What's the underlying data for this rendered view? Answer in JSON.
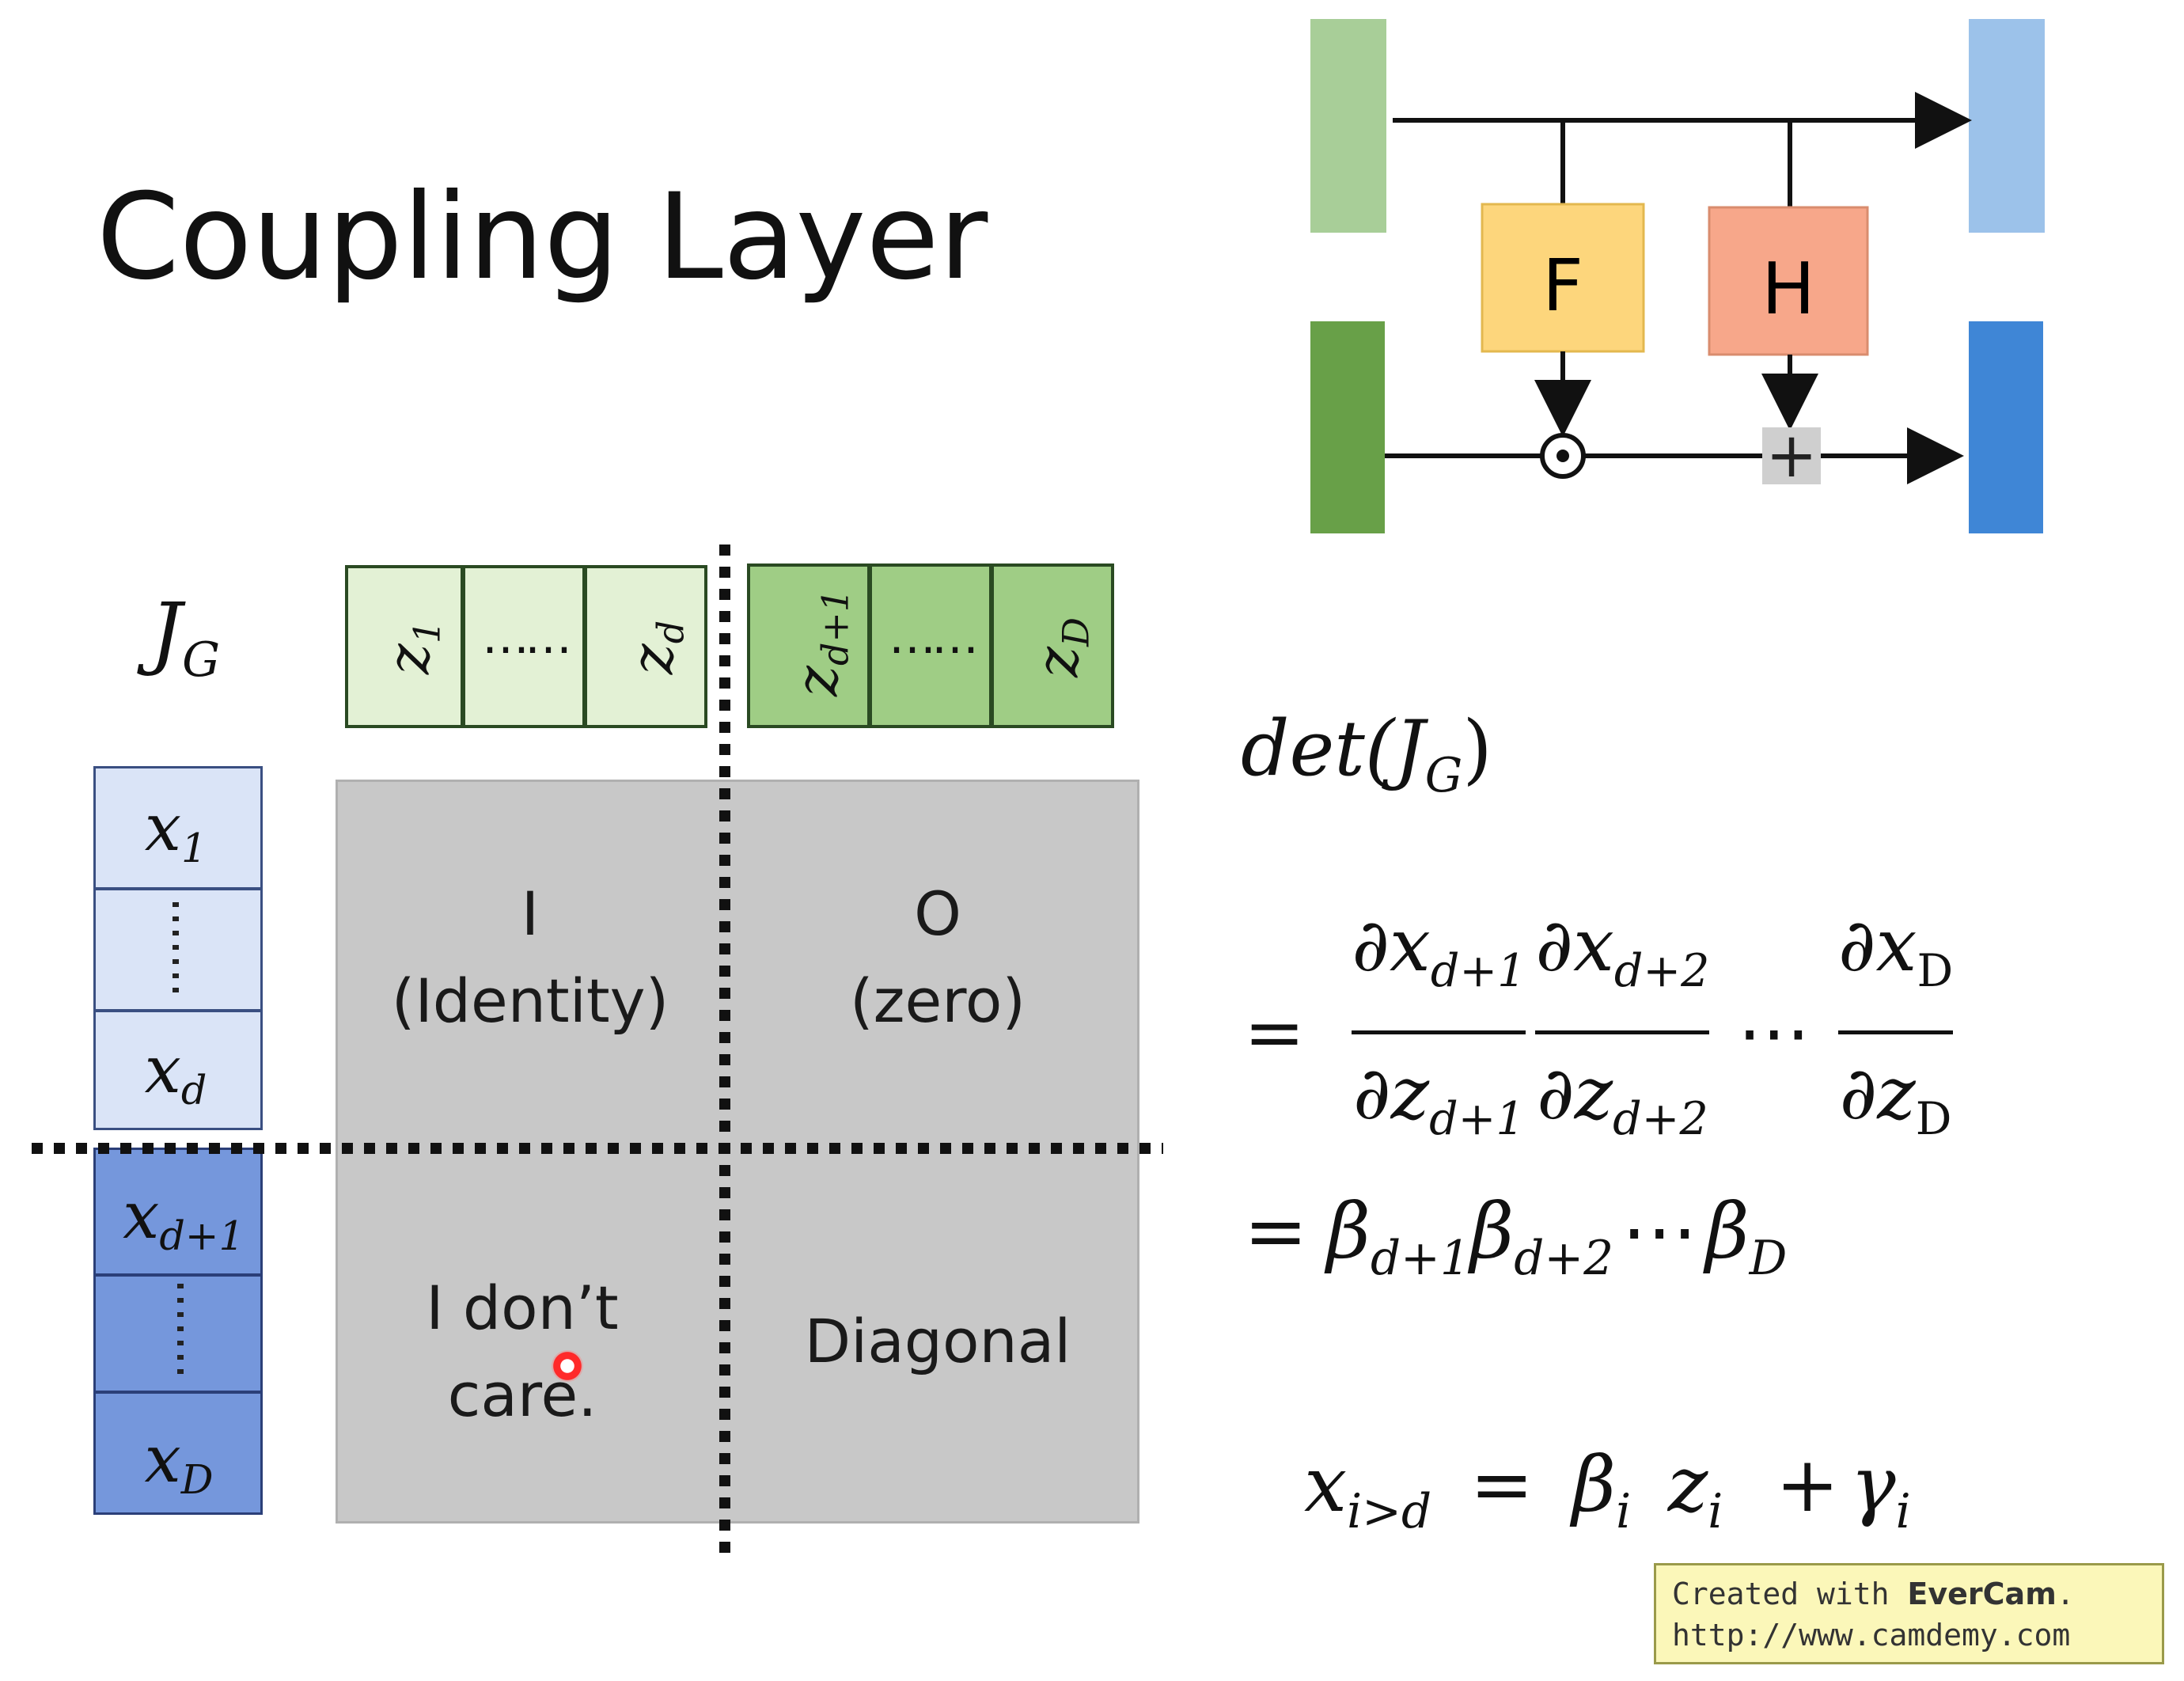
{
  "title": "Coupling Layer",
  "diagram": {
    "block_F": "F",
    "block_H": "H",
    "op_multiply": "⊙",
    "op_add": "+"
  },
  "jacobian": {
    "label_main": "J",
    "label_sub": "G",
    "z_cells": [
      {
        "base": "z",
        "sub": "1"
      },
      {
        "base": "",
        "sub": "",
        "dots": "……"
      },
      {
        "base": "z",
        "sub": "d"
      },
      {
        "base": "z",
        "sub": "d+1"
      },
      {
        "base": "",
        "sub": "",
        "dots": "……"
      },
      {
        "base": "z",
        "sub": "D"
      }
    ],
    "x_cells": [
      {
        "base": "x",
        "sub": "1"
      },
      {
        "base": "x",
        "sub": "d"
      },
      {
        "base": "x",
        "sub": "d+1"
      },
      {
        "base": "x",
        "sub": "D"
      }
    ],
    "quadrants": {
      "top_left_line1": "I",
      "top_left_line2": "(Identity)",
      "top_right_line1": "O",
      "top_right_line2": "(zero)",
      "bottom_left_line1": "I don’t",
      "bottom_left_line2": "care.",
      "bottom_right": "Diagonal"
    }
  },
  "equations": {
    "det_label": "det(J",
    "det_sub": "G",
    "det_close": ")",
    "ratio_eq": "=",
    "ratio_ellipsis": "⋯",
    "fraction_1_num": "∂x",
    "fraction_1_num_sub": "d+1",
    "fraction_1_den": "∂z",
    "fraction_1_den_sub": "d+1",
    "fraction_2_num": "∂x",
    "fraction_2_num_sub": "d+2",
    "fraction_2_den": "∂z",
    "fraction_2_den_sub": "d+2",
    "fraction_3_num": "∂x",
    "fraction_3_num_sub": "D",
    "fraction_3_den": "∂z",
    "fraction_3_den_sub": "D",
    "beta_eq": "=",
    "beta_1": "β",
    "beta_1_sub": "d+1",
    "beta_2": "β",
    "beta_2_sub": "d+2",
    "beta_ellipsis": "⋯",
    "beta_3": "β",
    "beta_3_sub": "D",
    "rule_x": "x",
    "rule_x_sub": "i>d",
    "rule_eq": "=",
    "rule_beta": "β",
    "rule_beta_sub": "i",
    "rule_z": "z",
    "rule_z_sub": "i",
    "rule_plus": "+",
    "rule_gamma": "γ",
    "rule_gamma_sub": "i"
  },
  "watermark": {
    "line1_prefix": "Created with ",
    "line1_brand": "EverCam",
    "line1_suffix": ".",
    "line2": "http://www.camdemy.com"
  },
  "colors": {
    "green_light": "#a8ce98",
    "green_dark": "#68a048",
    "blue_light": "#9cc2ea",
    "blue_dark": "#3f86d6",
    "block_F": "#fdd67c",
    "block_H": "#f7a78a",
    "z_light": "#e3f1d5",
    "z_dark": "#9fcd85",
    "x_light": "#dae4f7",
    "x_dark": "#7597dc",
    "matrix_gray": "#c8c8c8",
    "cursor_red": "#ff2a2a"
  }
}
